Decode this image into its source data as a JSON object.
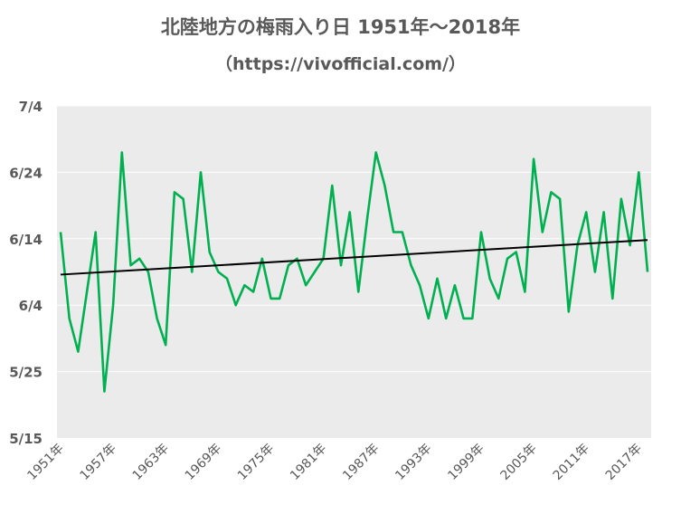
{
  "chart_data": {
    "type": "line",
    "title": "北陸地方の梅雨入り日 1951年～2018年",
    "subtitle": "（https://vivofficial.com/）",
    "y_tick_labels": [
      "7/4",
      "6/24",
      "6/14",
      "6/4",
      "5/25",
      "5/15"
    ],
    "y_tick_values": [
      50,
      40,
      30,
      20,
      10,
      0
    ],
    "ylim": [
      0,
      50
    ],
    "x_tick_labels": [
      "1951年",
      "1957年",
      "1963年",
      "1969年",
      "1975年",
      "1981年",
      "1987年",
      "1993年",
      "1999年",
      "2005年",
      "2011年",
      "2017年"
    ],
    "x_tick_years": [
      1951,
      1957,
      1963,
      1969,
      1975,
      1981,
      1987,
      1993,
      1999,
      2005,
      2011,
      2017
    ],
    "xlim": [
      1951,
      2018
    ],
    "grid": "horizontal",
    "colors": {
      "series": "#00b050",
      "trend": "#000000",
      "plot_bg": "#ebebeb",
      "grid": "#ffffff"
    },
    "series": [
      {
        "x": [
          1951,
          1952,
          1953,
          1954,
          1955,
          1956,
          1957,
          1958,
          1959,
          1960,
          1961,
          1962,
          1963,
          1964,
          1965,
          1966,
          1967,
          1968,
          1969,
          1970,
          1971,
          1972,
          1973,
          1974,
          1975,
          1976,
          1977,
          1978,
          1979,
          1980,
          1981,
          1982,
          1983,
          1984,
          1985,
          1986,
          1987,
          1988,
          1989,
          1990,
          1991,
          1992,
          1993,
          1994,
          1995,
          1996,
          1997,
          1998,
          1999,
          2000,
          2001,
          2002,
          2003,
          2004,
          2005,
          2006,
          2007,
          2008,
          2009,
          2010,
          2011,
          2012,
          2013,
          2014,
          2015,
          2016,
          2017,
          2018
        ],
        "values": [
          31,
          18,
          13,
          22,
          31,
          7,
          20,
          43,
          26,
          27,
          25,
          18,
          14,
          37,
          36,
          25,
          40,
          28,
          25,
          24,
          20,
          23,
          22,
          27,
          21,
          21,
          26,
          27,
          23,
          25,
          27,
          38,
          26,
          34,
          22,
          33,
          43,
          38,
          31,
          31,
          26,
          23,
          18,
          24,
          18,
          23,
          18,
          18,
          31,
          24,
          21,
          27,
          28,
          22,
          42,
          31,
          37,
          36,
          19,
          29,
          34,
          25,
          34,
          21,
          36,
          29,
          40,
          25
        ]
      },
      {
        "trend": true,
        "x": [
          1951,
          2018
        ],
        "values": [
          24.6,
          29.8
        ]
      }
    ]
  }
}
